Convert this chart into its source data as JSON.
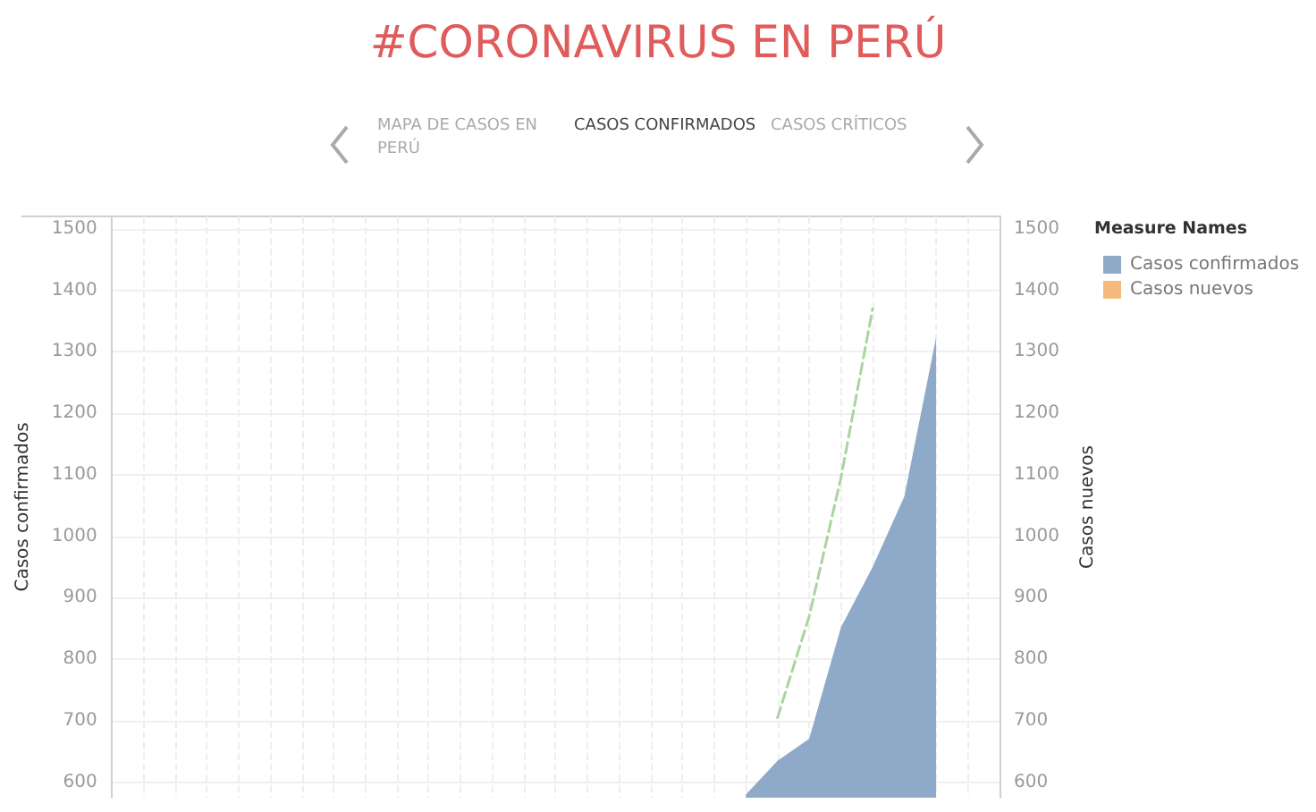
{
  "chart_data": {
    "type": "area",
    "title": "#CORONAVIRUS EN PERÚ",
    "annotations": [
      "MAPA DE CASOS EN PERÚ",
      "CASOS CONFIRMADOS",
      "CASOS CRÍTICOS"
    ],
    "categories": [
      null,
      null,
      null,
      null,
      null,
      null,
      null,
      null,
      null,
      null,
      null,
      null,
      null,
      null,
      null,
      null,
      null,
      null,
      null,
      null,
      null,
      null,
      null,
      null,
      null,
      null,
      null,
      null,
      null
    ],
    "series": [
      {
        "name": "Casos confirmados",
        "color": "#8eaac8",
        "values": [
          null,
          null,
          null,
          null,
          null,
          null,
          null,
          null,
          null,
          null,
          null,
          null,
          null,
          null,
          null,
          null,
          null,
          null,
          null,
          null,
          580,
          635,
          671,
          852,
          950,
          1065,
          1323,
          null,
          null
        ]
      },
      {
        "name": "Casos nuevos",
        "type": "bar",
        "axis": "y2",
        "color": "#f6b97d",
        "values": [
          null,
          null,
          null,
          null,
          null,
          null,
          null,
          null,
          null,
          null,
          null,
          null,
          null,
          null,
          null,
          null,
          null,
          null,
          null,
          null,
          null,
          null,
          null,
          null,
          null,
          null,
          null,
          null,
          null
        ]
      },
      {
        "type": "line",
        "line_style": "dashed",
        "color": "#a8d5a0",
        "values": [
          null,
          null,
          null,
          null,
          null,
          null,
          null,
          null,
          null,
          null,
          null,
          null,
          null,
          null,
          null,
          null,
          null,
          null,
          null,
          null,
          null,
          705,
          870,
          1095,
          1370,
          null,
          null,
          null,
          null
        ]
      }
    ],
    "ylabel": "Casos confirmados",
    "y2label": "Casos nuevos",
    "legend_title": "Measure Names",
    "legend": "top right",
    "ylim": [
      575,
      1520
    ],
    "yticks": [
      600,
      700,
      800,
      900,
      1000,
      1100,
      1200,
      1300,
      1400,
      1500
    ],
    "y2lim": [
      575,
      1520
    ],
    "y2ticks": [
      600,
      700,
      800,
      900,
      1000,
      1100,
      1200,
      1300,
      1400,
      1500
    ],
    "grid": true,
    "marker": "none"
  }
}
